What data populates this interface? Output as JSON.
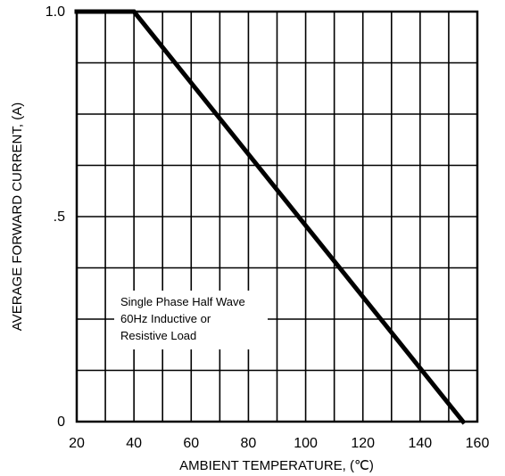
{
  "chart_data": {
    "type": "line",
    "title": "",
    "xlabel": "AMBIENT TEMPERATURE, (℃)",
    "ylabel": "AVERAGE FORWARD CURRENT, (A)",
    "xlim": [
      20,
      160
    ],
    "ylim": [
      0,
      1.0
    ],
    "grid": true,
    "x_ticks": [
      20,
      40,
      60,
      80,
      100,
      120,
      140,
      160
    ],
    "x_tick_labels": [
      "20",
      "40",
      "60",
      "80",
      "100",
      "120",
      "140",
      "160"
    ],
    "y_ticks": [
      0,
      0.5,
      1.0
    ],
    "y_tick_labels": [
      "0",
      ".5",
      "1.0"
    ],
    "series": [
      {
        "x": [
          20,
          40,
          155
        ],
        "y": [
          1.0,
          1.0,
          0.0
        ],
        "color": "#000000"
      }
    ],
    "annotation": {
      "lines": [
        "Single Phase Half Wave",
        "60Hz Inductive or",
        "Resistive Load"
      ]
    }
  }
}
